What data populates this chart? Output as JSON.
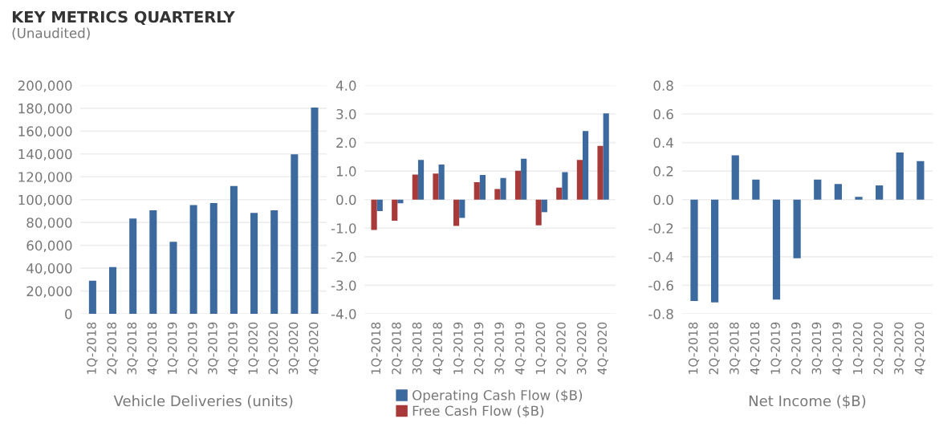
{
  "chart_data": [
    {
      "type": "bar",
      "title": "KEY METRICS QUARTERLY",
      "subtitle": "(Unaudited)",
      "xlabel": "Vehicle Deliveries (units)",
      "categories": [
        "1Q-2018",
        "2Q-2018",
        "3Q-2018",
        "4Q-2018",
        "1Q-2019",
        "2Q-2019",
        "3Q-2019",
        "4Q-2019",
        "1Q-2020",
        "2Q-2020",
        "3Q-2020",
        "4Q-2020"
      ],
      "series": [
        {
          "color": "#3d6a9e",
          "values": [
            29000,
            41000,
            83500,
            90700,
            63000,
            95200,
            97000,
            112000,
            88400,
            90600,
            139600,
            180600
          ]
        }
      ],
      "ylim": [
        0,
        200000
      ],
      "yticks": [
        {
          "value": 0,
          "label": "0"
        },
        {
          "value": 20000,
          "label": "20,000"
        },
        {
          "value": 40000,
          "label": "40,000"
        },
        {
          "value": 60000,
          "label": "60,000"
        },
        {
          "value": 80000,
          "label": "80,000"
        },
        {
          "value": 100000,
          "label": "100,000"
        },
        {
          "value": 120000,
          "label": "120,000"
        },
        {
          "value": 140000,
          "label": "140,000"
        },
        {
          "value": 160000,
          "label": "160,000"
        },
        {
          "value": 180000,
          "label": "180,000"
        },
        {
          "value": 200000,
          "label": "200,000"
        }
      ],
      "grid": "y",
      "legend": false
    },
    {
      "type": "bar",
      "categories": [
        "1Q-2018",
        "2Q-2018",
        "3Q-2018",
        "4Q-2018",
        "1Q-2019",
        "2Q-2019",
        "3Q-2019",
        "4Q-2019",
        "1Q-2020",
        "2Q-2020",
        "3Q-2020",
        "4Q-2020"
      ],
      "series": [
        {
          "name": "Operating Cash Flow ($B)",
          "color": "#3d6a9e",
          "values": [
            -0.4,
            -0.13,
            1.39,
            1.23,
            -0.64,
            0.86,
            0.76,
            1.43,
            -0.44,
            0.96,
            2.4,
            3.02
          ]
        },
        {
          "name": "Free Cash Flow ($B)",
          "color": "#a83a3a",
          "values": [
            -1.06,
            -0.74,
            0.88,
            0.91,
            -0.92,
            0.61,
            0.37,
            1.01,
            -0.9,
            0.42,
            1.39,
            1.88
          ]
        }
      ],
      "ylim": [
        -4,
        4
      ],
      "yticks": [
        {
          "value": -4,
          "label": "-4.0"
        },
        {
          "value": -3,
          "label": "-3.0"
        },
        {
          "value": -2,
          "label": "-2.0"
        },
        {
          "value": -1,
          "label": "-1.0"
        },
        {
          "value": 0,
          "label": "0.0"
        },
        {
          "value": 1,
          "label": "1.0"
        },
        {
          "value": 2,
          "label": "2.0"
        },
        {
          "value": 3,
          "label": "3.0"
        },
        {
          "value": 4,
          "label": "4.0"
        }
      ],
      "grid": "y",
      "legend": "bottom"
    },
    {
      "type": "bar",
      "xlabel": "Net Income ($B)",
      "categories": [
        "1Q-2018",
        "2Q-2018",
        "3Q-2018",
        "4Q-2018",
        "1Q-2019",
        "2Q-2019",
        "3Q-2019",
        "4Q-2019",
        "1Q-2020",
        "2Q-2020",
        "3Q-2020",
        "4Q-2020"
      ],
      "series": [
        {
          "color": "#3d6a9e",
          "values": [
            -0.71,
            -0.72,
            0.31,
            0.14,
            -0.7,
            -0.41,
            0.14,
            0.11,
            0.02,
            0.1,
            0.33,
            0.27
          ]
        }
      ],
      "ylim": [
        -0.8,
        0.8
      ],
      "yticks": [
        {
          "value": -0.8,
          "label": "-0.8"
        },
        {
          "value": -0.6,
          "label": "-0.6"
        },
        {
          "value": -0.4,
          "label": "-0.4"
        },
        {
          "value": -0.2,
          "label": "-0.2"
        },
        {
          "value": 0,
          "label": "0.0"
        },
        {
          "value": 0.2,
          "label": "0.2"
        },
        {
          "value": 0.4,
          "label": "0.4"
        },
        {
          "value": 0.6,
          "label": "0.6"
        },
        {
          "value": 0.8,
          "label": "0.8"
        }
      ],
      "grid": "y",
      "legend": false
    }
  ]
}
